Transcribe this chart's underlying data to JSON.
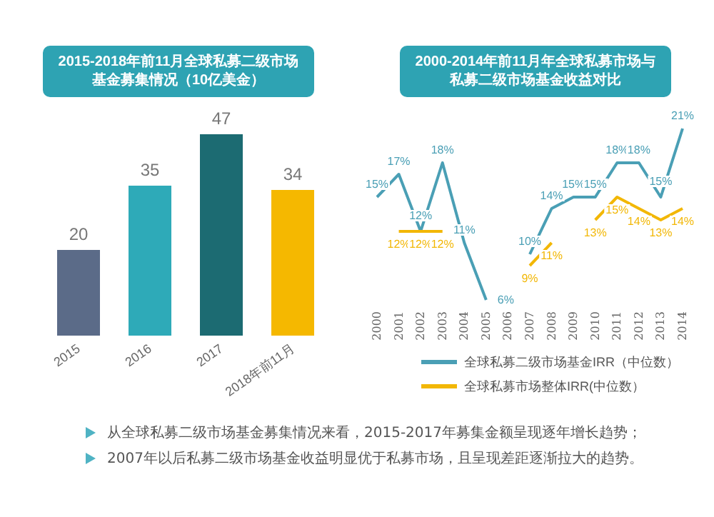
{
  "chart_data": [
    {
      "type": "bar",
      "title": "2015-2018年前11月全球私募二级市场基金募集情况（10亿美金）",
      "categories": [
        "2015",
        "2016",
        "2017",
        "2018年前11月"
      ],
      "values": [
        20,
        35,
        47,
        34
      ],
      "colors": [
        "#5b6b88",
        "#2eaab8",
        "#1c6b72",
        "#f5b800"
      ],
      "data_labels": true
    },
    {
      "type": "line",
      "title": "2000-2014年前11月年全球私募市场与私募二级市场基金收益对比",
      "categories": [
        "2000",
        "2001",
        "2002",
        "2003",
        "2004",
        "2005",
        "2006",
        "2007",
        "2008",
        "2009",
        "2010",
        "2011",
        "2012",
        "2013",
        "2014"
      ],
      "legend": "bottom",
      "marker": "none",
      "series": [
        {
          "name": "全球私募二级市场基金IRR（中位数）",
          "color": "#4a9fb5",
          "values": [
            15,
            17,
            12,
            18,
            11,
            6,
            null,
            10,
            14,
            15,
            15,
            18,
            18,
            15,
            21
          ],
          "value_labels": [
            "15%",
            "17%",
            "12%",
            "18%",
            "11%",
            "6%",
            null,
            "10%",
            "14%",
            "15%",
            "15%",
            "18%",
            "18%",
            "15%",
            "21%"
          ]
        },
        {
          "name": "全球私募市场整体IRR(中位数）",
          "color": "#f2b705",
          "values": [
            null,
            12,
            12,
            12,
            null,
            null,
            null,
            9,
            11,
            null,
            13,
            15,
            14,
            13,
            14
          ],
          "value_labels": [
            null,
            "12%",
            "12%",
            "12%",
            null,
            null,
            null,
            "9%",
            "11%",
            null,
            "13%",
            "15%",
            "14%",
            "13%",
            "14%"
          ]
        }
      ]
    },
    {
      "type": "other",
      "annotations": [
        "从全球私募二级市场基金募集情况来看，2015-2017年募集金额呈现逐年增长趋势；",
        "2007年以后私募二级市场基金收益明显优于私募市场，且呈现差距逐渐拉大的趋势。"
      ]
    }
  ]
}
